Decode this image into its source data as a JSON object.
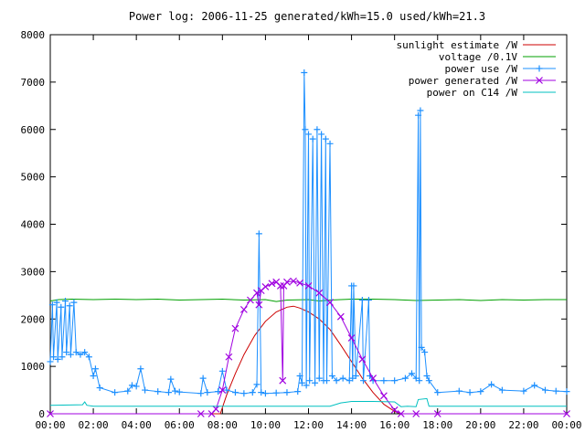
{
  "chart_data": {
    "type": "line",
    "title": "Power log: 2006-11-25 generated/kWh=15.0 used/kWh=21.3",
    "xlabel": "",
    "ylabel": "",
    "xlim": [
      0,
      24
    ],
    "ylim": [
      0,
      8000
    ],
    "x_ticks": [
      "00:00",
      "02:00",
      "04:00",
      "06:00",
      "08:00",
      "10:00",
      "12:00",
      "14:00",
      "16:00",
      "18:00",
      "20:00",
      "22:00",
      "00:00"
    ],
    "y_ticks": [
      0,
      1000,
      2000,
      3000,
      4000,
      5000,
      6000,
      7000,
      8000
    ],
    "grid": false,
    "legend_position": "top-right",
    "series": [
      {
        "name": "sunlight estimate /W",
        "color": "#cc0000",
        "marker": "none",
        "points": [
          [
            0,
            0
          ],
          [
            7.9,
            0
          ],
          [
            8.2,
            400
          ],
          [
            8.6,
            850
          ],
          [
            9,
            1250
          ],
          [
            9.5,
            1650
          ],
          [
            10,
            1950
          ],
          [
            10.5,
            2150
          ],
          [
            11,
            2250
          ],
          [
            11.3,
            2270
          ],
          [
            11.6,
            2230
          ],
          [
            12,
            2150
          ],
          [
            12.5,
            2000
          ],
          [
            13,
            1780
          ],
          [
            13.5,
            1450
          ],
          [
            14,
            1100
          ],
          [
            14.5,
            750
          ],
          [
            15,
            450
          ],
          [
            15.5,
            200
          ],
          [
            16,
            50
          ],
          [
            16.3,
            0
          ],
          [
            24,
            0
          ]
        ]
      },
      {
        "name": "voltage /0.1V",
        "color": "#00a000",
        "marker": "none",
        "points": [
          [
            0,
            2380
          ],
          [
            0.4,
            2410
          ],
          [
            1,
            2420
          ],
          [
            2,
            2410
          ],
          [
            3,
            2420
          ],
          [
            4,
            2410
          ],
          [
            5,
            2420
          ],
          [
            6,
            2400
          ],
          [
            7,
            2410
          ],
          [
            8,
            2420
          ],
          [
            9,
            2400
          ],
          [
            10,
            2410
          ],
          [
            10.5,
            2370
          ],
          [
            11,
            2400
          ],
          [
            12,
            2410
          ],
          [
            12.5,
            2380
          ],
          [
            13,
            2400
          ],
          [
            14,
            2420
          ],
          [
            15,
            2420
          ],
          [
            16,
            2410
          ],
          [
            17,
            2390
          ],
          [
            18,
            2400
          ],
          [
            19,
            2410
          ],
          [
            20,
            2390
          ],
          [
            21,
            2410
          ],
          [
            22,
            2400
          ],
          [
            23,
            2410
          ],
          [
            24,
            2410
          ]
        ]
      },
      {
        "name": "power use /W",
        "color": "#1e90ff",
        "marker": "plus",
        "points": [
          [
            0,
            1100
          ],
          [
            0.1,
            2300
          ],
          [
            0.15,
            1200
          ],
          [
            0.3,
            2350
          ],
          [
            0.35,
            1150
          ],
          [
            0.5,
            2250
          ],
          [
            0.55,
            1200
          ],
          [
            0.7,
            2380
          ],
          [
            0.75,
            1300
          ],
          [
            0.9,
            2280
          ],
          [
            0.95,
            1250
          ],
          [
            1.1,
            2350
          ],
          [
            1.2,
            1300
          ],
          [
            1.4,
            1250
          ],
          [
            1.6,
            1300
          ],
          [
            1.8,
            1200
          ],
          [
            2.0,
            800
          ],
          [
            2.1,
            950
          ],
          [
            2.3,
            550
          ],
          [
            3,
            450
          ],
          [
            3.6,
            480
          ],
          [
            3.8,
            600
          ],
          [
            4,
            580
          ],
          [
            4.2,
            950
          ],
          [
            4.4,
            500
          ],
          [
            5,
            470
          ],
          [
            5.5,
            450
          ],
          [
            5.6,
            730
          ],
          [
            5.8,
            480
          ],
          [
            6,
            460
          ],
          [
            7,
            430
          ],
          [
            7.1,
            750
          ],
          [
            7.3,
            450
          ],
          [
            7.8,
            470
          ],
          [
            8,
            900
          ],
          [
            8.2,
            500
          ],
          [
            8.6,
            450
          ],
          [
            9,
            430
          ],
          [
            9.4,
            450
          ],
          [
            9.6,
            620
          ],
          [
            9.7,
            3800
          ],
          [
            9.8,
            450
          ],
          [
            10,
            430
          ],
          [
            10.5,
            440
          ],
          [
            11,
            450
          ],
          [
            11.5,
            470
          ],
          [
            11.6,
            800
          ],
          [
            11.7,
            650
          ],
          [
            11.8,
            7200
          ],
          [
            11.85,
            6000
          ],
          [
            11.9,
            600
          ],
          [
            12.0,
            5900
          ],
          [
            12.05,
            700
          ],
          [
            12.2,
            5800
          ],
          [
            12.3,
            650
          ],
          [
            12.4,
            6000
          ],
          [
            12.5,
            750
          ],
          [
            12.6,
            5900
          ],
          [
            12.7,
            700
          ],
          [
            12.8,
            5800
          ],
          [
            12.85,
            700
          ],
          [
            13,
            5700
          ],
          [
            13.1,
            800
          ],
          [
            13.3,
            700
          ],
          [
            13.6,
            750
          ],
          [
            13.9,
            700
          ],
          [
            14,
            2700
          ],
          [
            14.05,
            750
          ],
          [
            14.1,
            2700
          ],
          [
            14.2,
            800
          ],
          [
            14.5,
            2400
          ],
          [
            14.55,
            700
          ],
          [
            14.8,
            2400
          ],
          [
            14.85,
            800
          ],
          [
            15,
            700
          ],
          [
            15.5,
            700
          ],
          [
            16,
            700
          ],
          [
            16.5,
            750
          ],
          [
            16.8,
            850
          ],
          [
            17,
            750
          ],
          [
            17.1,
            6300
          ],
          [
            17.15,
            700
          ],
          [
            17.2,
            6400
          ],
          [
            17.25,
            1400
          ],
          [
            17.4,
            1300
          ],
          [
            17.5,
            800
          ],
          [
            17.6,
            700
          ],
          [
            18,
            450
          ],
          [
            19,
            480
          ],
          [
            19.5,
            450
          ],
          [
            20,
            470
          ],
          [
            20.5,
            620
          ],
          [
            21,
            500
          ],
          [
            22,
            480
          ],
          [
            22.5,
            600
          ],
          [
            23,
            500
          ],
          [
            23.5,
            480
          ],
          [
            24,
            470
          ]
        ]
      },
      {
        "name": "power generated /W",
        "color": "#a000e0",
        "marker": "cross",
        "points": [
          [
            0,
            0
          ],
          [
            7.0,
            0
          ],
          [
            7.5,
            0
          ],
          [
            7.7,
            100
          ],
          [
            8,
            500
          ],
          [
            8.3,
            1200
          ],
          [
            8.6,
            1800
          ],
          [
            9,
            2200
          ],
          [
            9.3,
            2400
          ],
          [
            9.6,
            2550
          ],
          [
            9.7,
            2300
          ],
          [
            9.8,
            2600
          ],
          [
            10,
            2680
          ],
          [
            10.3,
            2750
          ],
          [
            10.5,
            2780
          ],
          [
            10.7,
            2700
          ],
          [
            10.8,
            700
          ],
          [
            10.85,
            2700
          ],
          [
            11,
            2780
          ],
          [
            11.3,
            2800
          ],
          [
            11.6,
            2760
          ],
          [
            12,
            2700
          ],
          [
            12.5,
            2550
          ],
          [
            13,
            2350
          ],
          [
            13.5,
            2050
          ],
          [
            14,
            1600
          ],
          [
            14.5,
            1150
          ],
          [
            15,
            750
          ],
          [
            15.5,
            380
          ],
          [
            16,
            80
          ],
          [
            16.3,
            0
          ],
          [
            17,
            0
          ],
          [
            18,
            0
          ],
          [
            24,
            0
          ]
        ]
      },
      {
        "name": "power on C14 /W",
        "color": "#00c0c0",
        "marker": "none",
        "points": [
          [
            0,
            180
          ],
          [
            1.5,
            190
          ],
          [
            1.6,
            250
          ],
          [
            1.7,
            180
          ],
          [
            2,
            160
          ],
          [
            4,
            160
          ],
          [
            6,
            160
          ],
          [
            8,
            160
          ],
          [
            10,
            160
          ],
          [
            12,
            160
          ],
          [
            13,
            160
          ],
          [
            13.5,
            230
          ],
          [
            14,
            260
          ],
          [
            15,
            260
          ],
          [
            16,
            250
          ],
          [
            16.3,
            150
          ],
          [
            16.6,
            160
          ],
          [
            17,
            150
          ],
          [
            17.1,
            300
          ],
          [
            17.5,
            320
          ],
          [
            17.6,
            160
          ],
          [
            18,
            160
          ],
          [
            20,
            160
          ],
          [
            22,
            160
          ],
          [
            24,
            160
          ]
        ]
      }
    ]
  }
}
